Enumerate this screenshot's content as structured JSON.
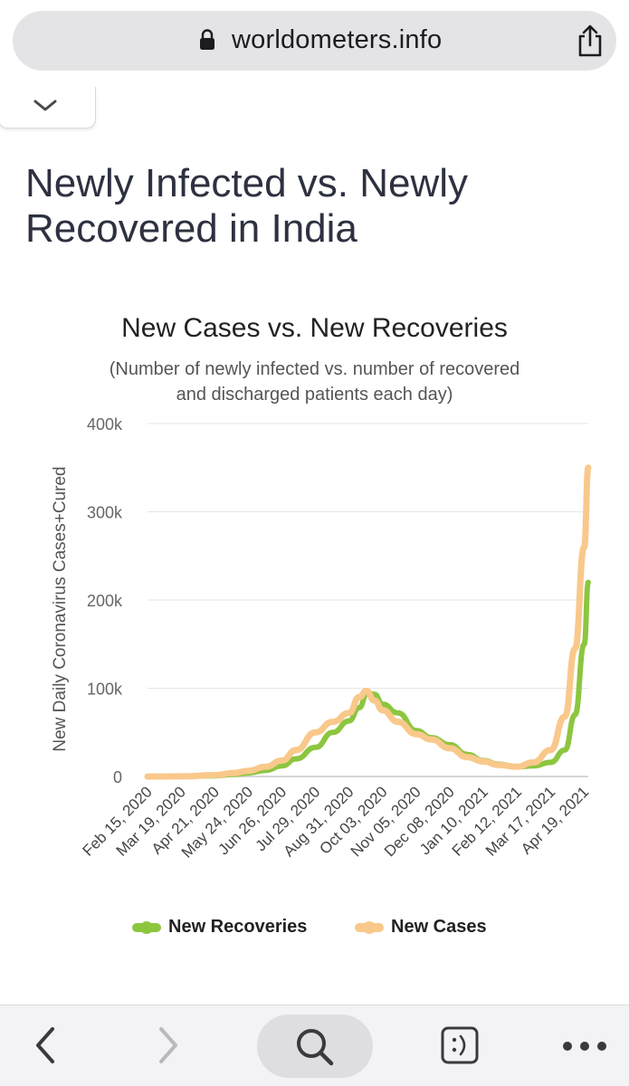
{
  "browser": {
    "url": "worldometers.info"
  },
  "page": {
    "title": "Newly Infected vs. Newly Recovered in India"
  },
  "chart_data": {
    "type": "line",
    "title": "New Cases vs. New Recoveries",
    "subtitle_line1": "(Number of newly infected vs. number of recovered",
    "subtitle_line2": "and discharged patients each day)",
    "ylabel": "New Daily Coronavirus Cases+Cured",
    "xlabel": "",
    "ylim": [
      0,
      400000
    ],
    "y_ticks": [
      0,
      100000,
      200000,
      300000,
      400000
    ],
    "y_tick_labels": [
      "0",
      "100k",
      "200k",
      "300k",
      "400k"
    ],
    "x_tick_labels": [
      "Feb 15, 2020",
      "Mar 19, 2020",
      "Apr 21, 2020",
      "May 24, 2020",
      "Jun 26, 2020",
      "Jul 29, 2020",
      "Aug 31, 2020",
      "Oct 03, 2020",
      "Nov 05, 2020",
      "Dec 08, 2020",
      "Jan 10, 2021",
      "Feb 12, 2021",
      "Mar 17, 2021",
      "Apr 19, 2021"
    ],
    "x_range": [
      "2020-02-15",
      "2021-04-23"
    ],
    "grid": true,
    "legend_position": "bottom",
    "series": [
      {
        "name": "New Recoveries",
        "color": "#8cc63f",
        "x": [
          "2020-02-15",
          "2020-03-19",
          "2020-04-21",
          "2020-05-10",
          "2020-05-24",
          "2020-06-10",
          "2020-06-26",
          "2020-07-10",
          "2020-07-29",
          "2020-08-15",
          "2020-08-31",
          "2020-09-10",
          "2020-09-18",
          "2020-09-25",
          "2020-10-03",
          "2020-10-18",
          "2020-11-05",
          "2020-11-20",
          "2020-12-08",
          "2020-12-25",
          "2021-01-10",
          "2021-01-25",
          "2021-02-12",
          "2021-02-28",
          "2021-03-17",
          "2021-03-31",
          "2021-04-10",
          "2021-04-19",
          "2021-04-23"
        ],
        "values": [
          0,
          100,
          800,
          2500,
          4000,
          7000,
          12000,
          20000,
          33000,
          50000,
          63000,
          78000,
          95000,
          93000,
          82000,
          72000,
          52000,
          44000,
          36000,
          25000,
          18000,
          14000,
          11000,
          12000,
          16000,
          30000,
          70000,
          150000,
          220000
        ]
      },
      {
        "name": "New Cases",
        "color": "#f9c88b",
        "x": [
          "2020-02-15",
          "2020-03-19",
          "2020-04-21",
          "2020-05-10",
          "2020-05-24",
          "2020-06-10",
          "2020-06-26",
          "2020-07-10",
          "2020-07-29",
          "2020-08-15",
          "2020-08-31",
          "2020-09-10",
          "2020-09-17",
          "2020-09-25",
          "2020-10-03",
          "2020-10-18",
          "2020-11-05",
          "2020-11-20",
          "2020-12-08",
          "2020-12-25",
          "2021-01-10",
          "2021-01-25",
          "2021-02-12",
          "2021-02-28",
          "2021-03-17",
          "2021-03-31",
          "2021-04-10",
          "2021-04-19",
          "2021-04-23"
        ],
        "values": [
          0,
          150,
          1500,
          4000,
          6500,
          11000,
          18000,
          30000,
          50000,
          62000,
          72000,
          90000,
          97000,
          86000,
          75000,
          62000,
          48000,
          42000,
          32000,
          22000,
          17000,
          13000,
          11000,
          16000,
          30000,
          68000,
          145000,
          260000,
          350000
        ]
      }
    ]
  },
  "toolbar": {
    "icons": [
      "back-icon",
      "forward-icon",
      "search-icon",
      "tab-icon",
      "more-icon"
    ]
  }
}
